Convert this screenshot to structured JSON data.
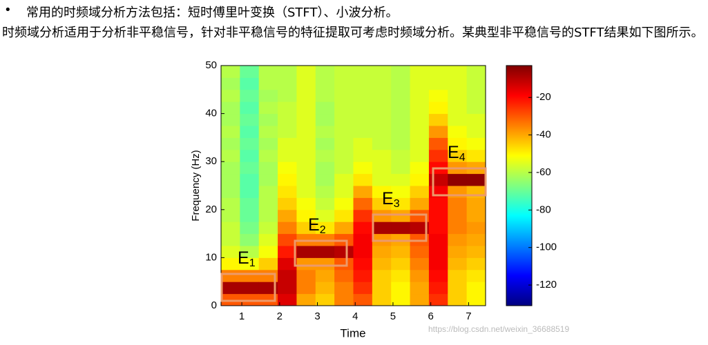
{
  "text": {
    "bullet_line": "常用的时频域分析方法包括：短时傅里叶变换（STFT）、小波分析。",
    "paragraph": "时频域分析适用于分析非平稳信号，针对非平稳信号的特征提取可考虑时频域分析。某典型非平稳信号的STFT结果如下图所示。",
    "watermark": "https://blog.csdn.net/weixin_36688519"
  },
  "chart_data": {
    "type": "heatmap",
    "xlabel": "Time",
    "ylabel": "Frequency (Hz)",
    "xlim": [
      0.45,
      7.45
    ],
    "xticks": [
      1,
      2,
      3,
      4,
      5,
      6,
      7
    ],
    "ylim": [
      0,
      50
    ],
    "yticks": [
      0,
      10,
      20,
      30,
      40,
      50
    ],
    "clim": [
      -131,
      -3
    ],
    "cticks": [
      -20,
      -40,
      -60,
      -80,
      -100,
      -120
    ],
    "colormap": "jet",
    "annotations": [
      {
        "letter": "E",
        "index": "1"
      },
      {
        "letter": "E",
        "index": "2"
      },
      {
        "letter": "E",
        "index": "3"
      },
      {
        "letter": "E",
        "index": "4"
      }
    ],
    "z": [
      [
        -30,
        -8,
        -35,
        -50,
        -55,
        -58,
        -58,
        -60,
        -60,
        -62,
        -62,
        -62,
        -60,
        -62,
        -60,
        -62,
        -62,
        -60,
        -62,
        -60
      ],
      [
        -30,
        -8,
        -35,
        -52,
        -60,
        -65,
        -68,
        -70,
        -70,
        -72,
        -72,
        -70,
        -72,
        -70,
        -72,
        -70,
        -72,
        -70,
        -72,
        -70
      ],
      [
        -30,
        -8,
        -35,
        -45,
        -52,
        -55,
        -58,
        -60,
        -60,
        -60,
        -62,
        -62,
        -60,
        -62,
        -60,
        -62,
        -60,
        -62,
        -60,
        -60
      ],
      [
        -15,
        -12,
        -12,
        -15,
        -22,
        -28,
        -35,
        -40,
        -45,
        -48,
        -50,
        -52,
        -55,
        -55,
        -58,
        -58,
        -58,
        -60,
        -60,
        -60
      ],
      [
        -40,
        -35,
        -35,
        -38,
        -8,
        -35,
        -45,
        -50,
        -52,
        -55,
        -55,
        -55,
        -55,
        -55,
        -55,
        -55,
        -55,
        -55,
        -55,
        -55
      ],
      [
        -45,
        -42,
        -40,
        -38,
        -8,
        -35,
        -48,
        -55,
        -58,
        -60,
        -62,
        -62,
        -60,
        -62,
        -60,
        -62,
        -62,
        -60,
        -60,
        -60
      ],
      [
        -35,
        -35,
        -32,
        -30,
        -10,
        -30,
        -40,
        -48,
        -52,
        -55,
        -55,
        -58,
        -58,
        -58,
        -58,
        -58,
        -58,
        -58,
        -58,
        -58
      ],
      [
        -30,
        -25,
        -22,
        -20,
        -18,
        -18,
        -20,
        -25,
        -32,
        -40,
        -48,
        -52,
        -55,
        -55,
        -58,
        -58,
        -58,
        -58,
        -58,
        -58
      ],
      [
        -45,
        -45,
        -45,
        -42,
        -40,
        -38,
        -8,
        -38,
        -45,
        -50,
        -55,
        -55,
        -55,
        -58,
        -58,
        -58,
        -58,
        -58,
        -58,
        -58
      ],
      [
        -50,
        -50,
        -48,
        -45,
        -42,
        -40,
        -8,
        -40,
        -48,
        -52,
        -55,
        -58,
        -58,
        -60,
        -60,
        -60,
        -60,
        -60,
        -60,
        -60
      ],
      [
        -40,
        -40,
        -38,
        -35,
        -32,
        -30,
        -10,
        -30,
        -40,
        -45,
        -50,
        -52,
        -55,
        -55,
        -55,
        -55,
        -55,
        -55,
        -55,
        -55
      ],
      [
        -25,
        -22,
        -20,
        -18,
        -18,
        -18,
        -20,
        -20,
        -20,
        -18,
        -12,
        -20,
        -25,
        -30,
        -38,
        -45,
        -50,
        -52,
        -55,
        -55
      ],
      [
        -45,
        -45,
        -45,
        -42,
        -40,
        -38,
        -35,
        -35,
        -35,
        -38,
        -5,
        -38,
        -45,
        -50,
        -52,
        -55,
        -55,
        -55,
        -55,
        -55
      ],
      [
        -50,
        -50,
        -48,
        -45,
        -42,
        -40,
        -38,
        -40,
        -40,
        -42,
        -5,
        -40,
        -48,
        -52,
        -55,
        -55,
        -58,
        -58,
        -58,
        -58
      ]
    ]
  }
}
